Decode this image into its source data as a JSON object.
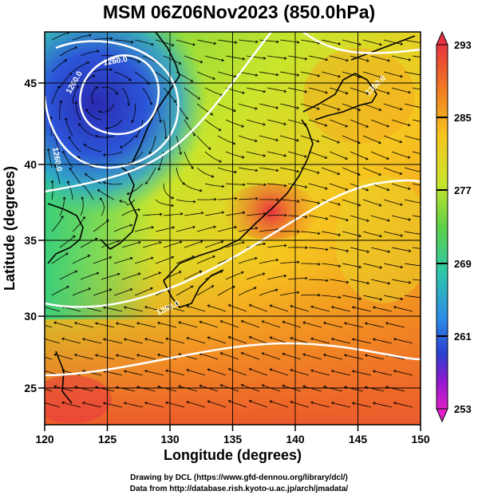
{
  "title": "MSM 06Z06Nov2023 (850.0hPa)",
  "map": {
    "xlabel": "Longitude (degrees)",
    "ylabel": "Latitude  (degrees)",
    "lon_range": [
      120,
      150
    ],
    "lat_range": [
      22.4,
      47.9
    ],
    "x_ticks": [
      "120",
      "125",
      "130",
      "135",
      "140",
      "145",
      "150"
    ],
    "y_ticks": [
      "25",
      "30",
      "35",
      "40",
      "45"
    ],
    "contour_labels": [
      "1260.0",
      "1260.0",
      "1260.0",
      "1260.0",
      "1350.0"
    ]
  },
  "colorbar": {
    "ticks": [
      "293",
      "285",
      "277",
      "269",
      "261",
      "253"
    ],
    "colors": [
      "#e8343f",
      "#f07a22",
      "#f6c51f",
      "#c9e52c",
      "#5fd047",
      "#2fc9a8",
      "#2b8de6",
      "#2c3fd0",
      "#2a1fa8",
      "#8e1ad0",
      "#e01fc9"
    ]
  },
  "credit": {
    "line1": "Drawing by DCL (https://www.gfd-dennou.org/library/dcl/)",
    "line2": "Data from http://database.rish.kyoto-u.ac.jp/arch/jmadata/"
  }
}
